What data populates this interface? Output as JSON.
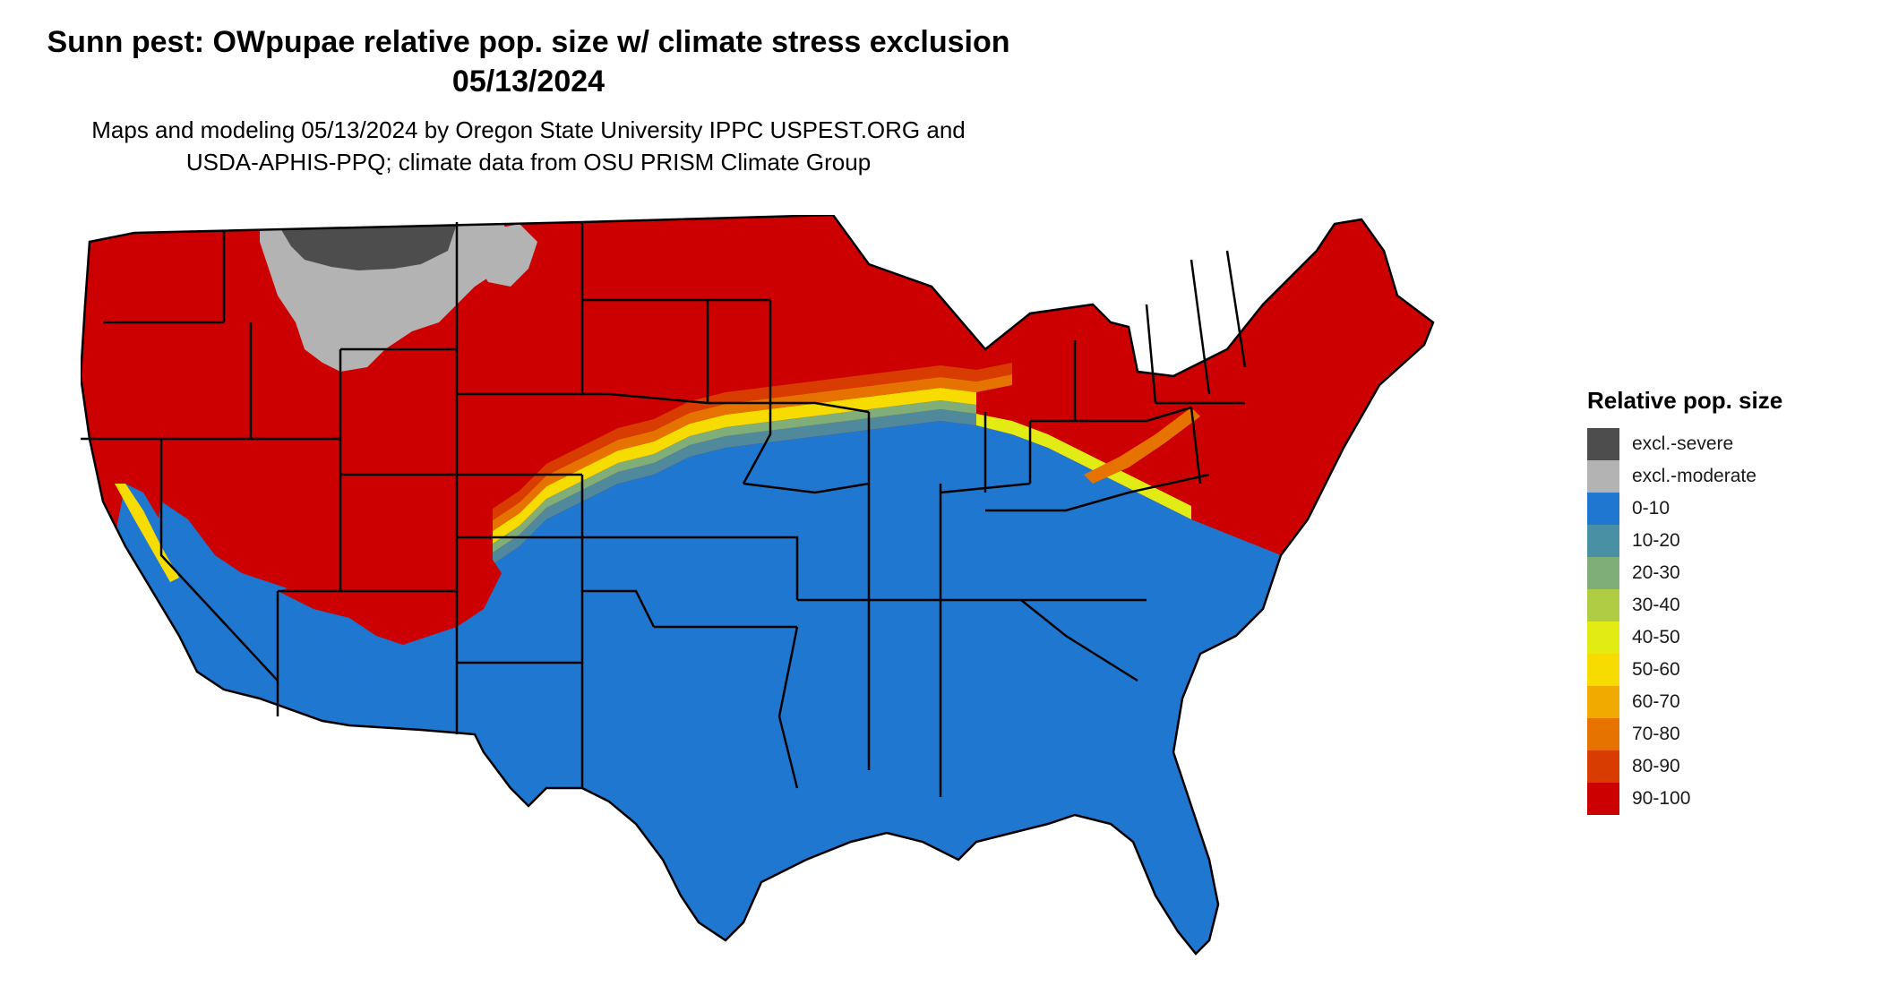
{
  "header": {
    "title_line1": "Sunn pest: OWpupae relative pop. size w/ climate stress exclusion",
    "title_line2": "05/13/2024",
    "subtitle_line1": "Maps and modeling 05/13/2024 by Oregon State University IPPC USPEST.ORG and",
    "subtitle_line2": "USDA-APHIS-PPQ; climate data from OSU PRISM Climate Group"
  },
  "legend": {
    "title": "Relative pop. size",
    "items": [
      {
        "label": "excl.-severe",
        "color": "#4d4d4d"
      },
      {
        "label": "excl.-moderate",
        "color": "#b3b3b3"
      },
      {
        "label": "0-10",
        "color": "#1f77d0"
      },
      {
        "label": "10-20",
        "color": "#4a90a4"
      },
      {
        "label": "20-30",
        "color": "#7fae78"
      },
      {
        "label": "30-40",
        "color": "#b0cc44"
      },
      {
        "label": "40-50",
        "color": "#e2ec14"
      },
      {
        "label": "50-60",
        "color": "#f6dc00"
      },
      {
        "label": "60-70",
        "color": "#f0aa00"
      },
      {
        "label": "70-80",
        "color": "#e67300"
      },
      {
        "label": "80-90",
        "color": "#d93c00"
      },
      {
        "label": "90-100",
        "color": "#cc0000"
      }
    ]
  },
  "map": {
    "colors": {
      "red": "#cc0000",
      "blue": "#1f77d0",
      "gray": "#b3b3b3",
      "darkgray": "#4d4d4d",
      "yellow": "#f6dc00",
      "lightyellow": "#e2ec14",
      "teal": "#4a90a4",
      "green": "#7fae78",
      "orange": "#e67300",
      "redorange": "#d93c00"
    }
  }
}
